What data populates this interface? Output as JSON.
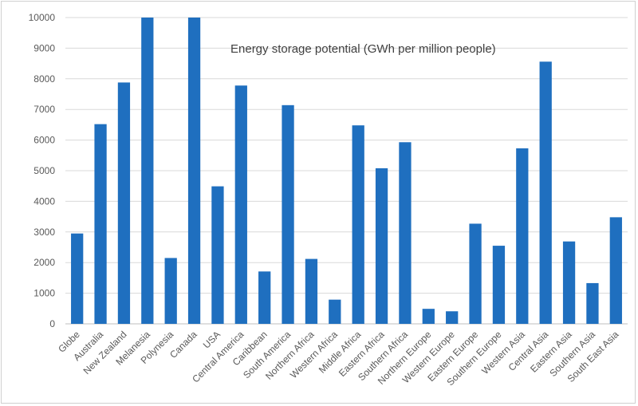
{
  "chart_data": {
    "type": "bar",
    "title": "Energy storage potential (GWh per million people)",
    "xlabel": "",
    "ylabel": "",
    "ylim": [
      0,
      10000
    ],
    "yticks": [
      0,
      1000,
      2000,
      3000,
      4000,
      5000,
      6000,
      7000,
      8000,
      9000,
      10000
    ],
    "grid": true,
    "legend": "none",
    "bar_color": "#1f6fbf",
    "categories": [
      "Globe",
      "Australia",
      "New Zealand",
      "Melanesia",
      "Polynesia",
      "Canada",
      "USA",
      "Central America",
      "Caribbean",
      "South America",
      "Northern Africa",
      "Western Africa",
      "Middle Africa",
      "Eastern Africa",
      "Southern Africa",
      "Northern Europe",
      "Western Europe",
      "Eastern Europe",
      "Southern Europe",
      "Western Asia",
      "Central Asia",
      "Eastern Asia",
      "Southern Asia",
      "South East Asia"
    ],
    "values": [
      2950,
      6520,
      7880,
      10000,
      2150,
      10000,
      4490,
      7780,
      1710,
      7140,
      2120,
      790,
      6480,
      5080,
      5930,
      490,
      410,
      3270,
      2550,
      5730,
      8560,
      2690,
      1330,
      3480
    ]
  }
}
